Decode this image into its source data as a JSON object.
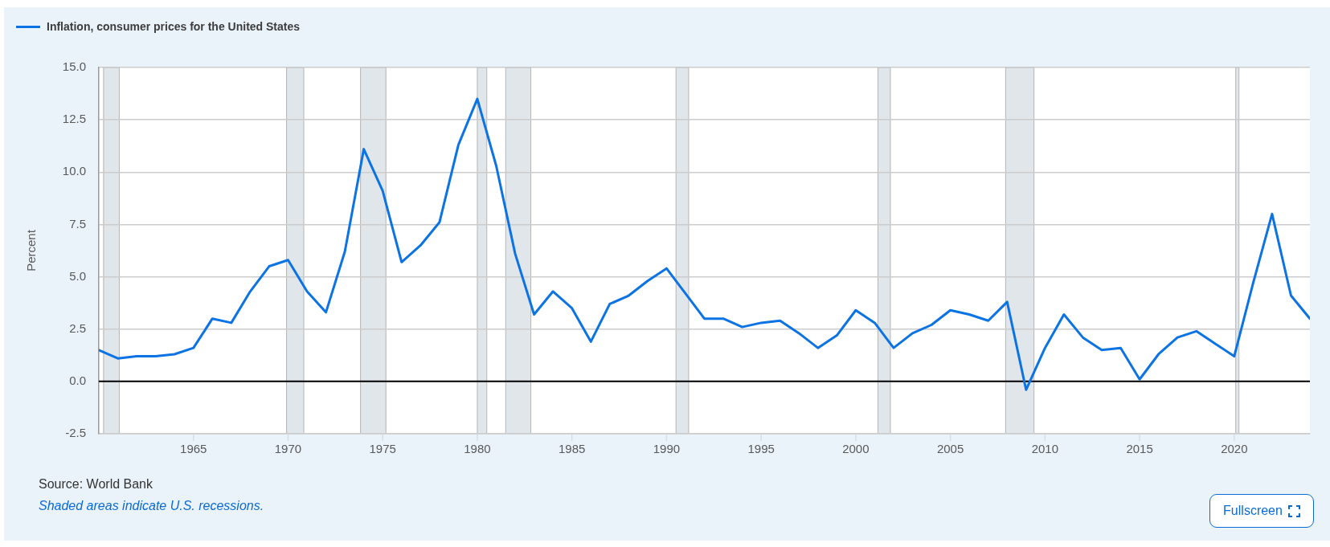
{
  "chart_data": {
    "type": "line",
    "ylabel": "Percent",
    "legend": "top left",
    "x": [
      1960,
      1961,
      1962,
      1963,
      1964,
      1965,
      1966,
      1967,
      1968,
      1969,
      1970,
      1971,
      1972,
      1973,
      1974,
      1975,
      1976,
      1977,
      1978,
      1979,
      1980,
      1981,
      1982,
      1983,
      1984,
      1985,
      1986,
      1987,
      1988,
      1989,
      1990,
      1991,
      1992,
      1993,
      1994,
      1995,
      1996,
      1997,
      1998,
      1999,
      2000,
      2001,
      2002,
      2003,
      2004,
      2005,
      2006,
      2007,
      2008,
      2009,
      2010,
      2011,
      2012,
      2013,
      2014,
      2015,
      2016,
      2017,
      2018,
      2019,
      2020,
      2021,
      2022,
      2023,
      2024
    ],
    "series": [
      {
        "name": "Inflation, consumer prices for the United States",
        "color": "#0b73e3",
        "values": [
          1.5,
          1.1,
          1.2,
          1.2,
          1.3,
          1.6,
          3.0,
          2.8,
          4.3,
          5.5,
          5.8,
          4.3,
          3.3,
          6.2,
          11.1,
          9.1,
          5.7,
          6.5,
          7.6,
          11.3,
          13.5,
          10.3,
          6.1,
          3.2,
          4.3,
          3.5,
          1.9,
          3.7,
          4.1,
          4.8,
          5.4,
          4.2,
          3.0,
          3.0,
          2.6,
          2.8,
          2.9,
          2.3,
          1.6,
          2.2,
          3.4,
          2.8,
          1.6,
          2.3,
          2.7,
          3.4,
          3.2,
          2.9,
          3.8,
          -0.4,
          1.6,
          3.2,
          2.1,
          1.5,
          1.6,
          0.1,
          1.3,
          2.1,
          2.4,
          1.8,
          1.2,
          4.7,
          8.0,
          4.1,
          3.0
        ]
      }
    ],
    "xlim": [
      1960,
      2024
    ],
    "xticks": [
      1965,
      1970,
      1975,
      1980,
      1985,
      1990,
      1995,
      2000,
      2005,
      2010,
      2015,
      2020
    ],
    "ylim": [
      -2.5,
      15
    ],
    "yticks": [
      -2.5,
      {
        "value": 0,
        "label": "0.0"
      },
      2.5,
      {
        "value": 5,
        "label": "5.0"
      },
      7.5,
      {
        "value": 10,
        "label": "10.0"
      },
      12.5,
      {
        "value": 15,
        "label": "15.0"
      }
    ],
    "grid": "y",
    "ref_lines": [
      {
        "axis": "y",
        "value": 0,
        "color": "#000000"
      }
    ],
    "bands": [
      {
        "axis": "x",
        "from": 1960.25,
        "to": 1961.08,
        "color": "#e1e6eb"
      },
      {
        "axis": "x",
        "from": 1969.92,
        "to": 1970.83,
        "color": "#e1e6eb"
      },
      {
        "axis": "x",
        "from": 1973.83,
        "to": 1975.17,
        "color": "#e1e6eb"
      },
      {
        "axis": "x",
        "from": 1980.0,
        "to": 1980.5,
        "color": "#e1e6eb"
      },
      {
        "axis": "x",
        "from": 1981.5,
        "to": 1982.83,
        "color": "#e1e6eb"
      },
      {
        "axis": "x",
        "from": 1990.5,
        "to": 1991.17,
        "color": "#e1e6eb"
      },
      {
        "axis": "x",
        "from": 2001.17,
        "to": 2001.83,
        "color": "#e1e6eb"
      },
      {
        "axis": "x",
        "from": 2007.92,
        "to": 2009.42,
        "color": "#e1e6eb"
      },
      {
        "axis": "x",
        "from": 2020.08,
        "to": 2020.25,
        "color": "#e1e6eb"
      }
    ],
    "annotations": [
      "Source: World Bank",
      "Shaded areas indicate U.S. recessions.",
      "Fullscreen"
    ]
  }
}
